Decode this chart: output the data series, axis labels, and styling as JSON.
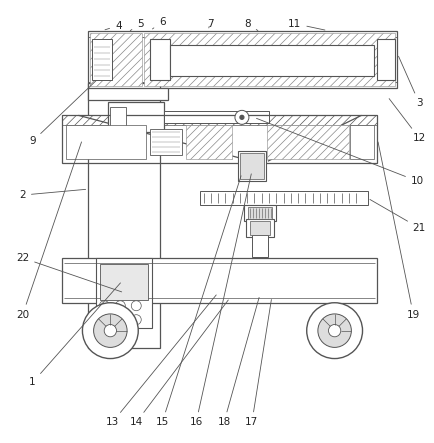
{
  "bg_color": "#ffffff",
  "line_color": "#555555",
  "figsize": [
    4.35,
    4.43
  ],
  "dpi": 100
}
